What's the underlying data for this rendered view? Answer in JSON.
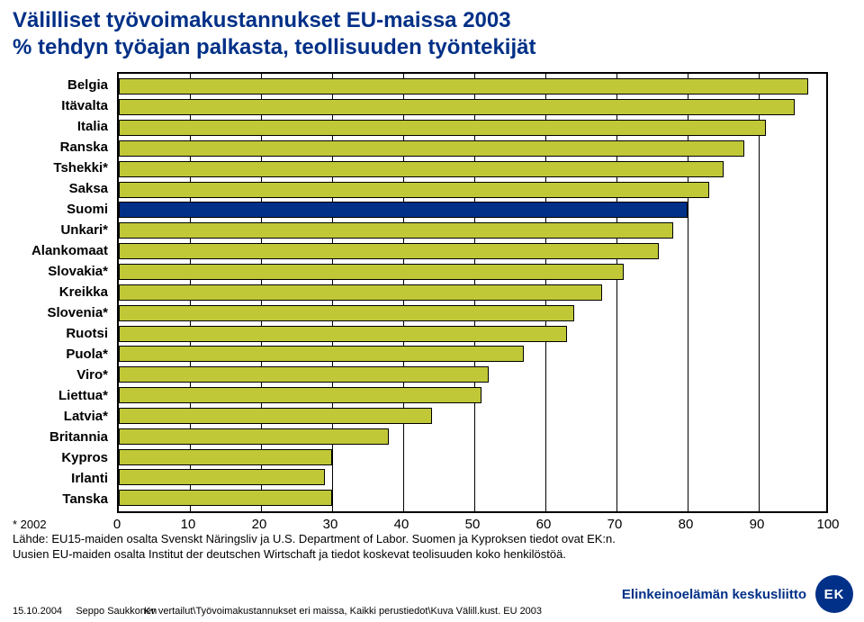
{
  "title_line1": "Välilliset työvoimakustannukset EU-maissa 2003",
  "title_line2": "% tehdyn työajan palkasta, teollisuuden työntekijät",
  "title_fontsize": 24,
  "chart": {
    "type": "bar",
    "orientation": "horizontal",
    "xlim": [
      0,
      100
    ],
    "xtick_step": 10,
    "xticks": [
      0,
      10,
      20,
      30,
      40,
      50,
      60,
      70,
      80,
      90,
      100
    ],
    "background_color": "#ffffff",
    "grid_color": "#000000",
    "border_color": "#000000",
    "default_bar_color": "#c0c838",
    "highlight_bar_color": "#003087",
    "bar_border": "#000000",
    "label_fontsize": 15,
    "tick_fontsize": 15,
    "categories": [
      {
        "label": "Belgia",
        "value": 97,
        "color": "#c0c838"
      },
      {
        "label": "Itävalta",
        "value": 95,
        "color": "#c0c838"
      },
      {
        "label": "Italia",
        "value": 91,
        "color": "#c0c838"
      },
      {
        "label": "Ranska",
        "value": 88,
        "color": "#c0c838"
      },
      {
        "label": "Tshekki*",
        "value": 85,
        "color": "#c0c838"
      },
      {
        "label": "Saksa",
        "value": 83,
        "color": "#c0c838"
      },
      {
        "label": "Suomi",
        "value": 80,
        "color": "#003087"
      },
      {
        "label": "Unkari*",
        "value": 78,
        "color": "#c0c838"
      },
      {
        "label": "Alankomaat",
        "value": 76,
        "color": "#c0c838"
      },
      {
        "label": "Slovakia*",
        "value": 71,
        "color": "#c0c838"
      },
      {
        "label": "Kreikka",
        "value": 68,
        "color": "#c0c838"
      },
      {
        "label": "Slovenia*",
        "value": 64,
        "color": "#c0c838"
      },
      {
        "label": "Ruotsi",
        "value": 63,
        "color": "#c0c838"
      },
      {
        "label": "Puola*",
        "value": 57,
        "color": "#c0c838"
      },
      {
        "label": "Viro*",
        "value": 52,
        "color": "#c0c838"
      },
      {
        "label": "Liettua*",
        "value": 51,
        "color": "#c0c838"
      },
      {
        "label": "Latvia*",
        "value": 44,
        "color": "#c0c838"
      },
      {
        "label": "Britannia",
        "value": 38,
        "color": "#c0c838"
      },
      {
        "label": "Kypros",
        "value": 30,
        "color": "#c0c838"
      },
      {
        "label": "Irlanti",
        "value": 29,
        "color": "#c0c838"
      },
      {
        "label": "Tanska",
        "value": 30,
        "color": "#c0c838"
      }
    ]
  },
  "footnote_star": "* 2002",
  "footnote_source": "Lähde: EU15-maiden osalta Svenskt Näringsliv ja U.S. Department of Labor. Suomen ja Kyproksen tiedot ovat EK:n. Uusien EU-maiden osalta Institut der deutschen Wirtschaft ja tiedot koskevat teolisuuden koko henkilöstöä.",
  "footnote_fontsize": 13,
  "credit_date": "15.10.2004",
  "credit_author": "Seppo Saukkonen",
  "path_text": "Kv vertailut\\Työvoimakustannukset eri maissa, Kaikki perustiedot\\Kuva Välill.kust. EU 2003",
  "small_fontsize": 11,
  "logo_text": "Elinkeinoelämän keskusliitto",
  "logo_badge": "EK",
  "logo_color": "#003087",
  "logo_fontsize": 15
}
